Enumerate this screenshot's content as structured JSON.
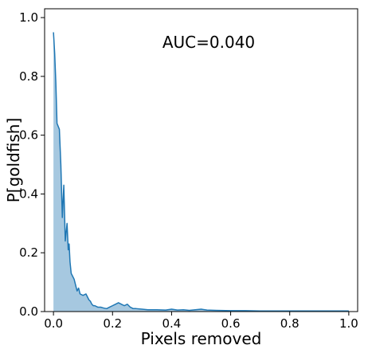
{
  "chart_data": {
    "type": "area",
    "title": "",
    "xlabel": "Pixels removed",
    "ylabel": "P[goldfish]",
    "annotation": "AUC=0.040",
    "xlim": [
      -0.03,
      1.03
    ],
    "ylim": [
      0.0,
      1.03
    ],
    "x_ticks": [
      0.0,
      0.2,
      0.4,
      0.6,
      0.8,
      1.0
    ],
    "x_tick_labels": [
      "0.0",
      "0.2",
      "0.4",
      "0.6",
      "0.8",
      "1.0"
    ],
    "y_ticks": [
      0.0,
      0.2,
      0.4,
      0.6,
      0.8,
      1.0
    ],
    "y_tick_labels": [
      "0.0",
      "0.2",
      "0.4",
      "0.6",
      "0.8",
      "1.0"
    ],
    "grid": false,
    "line_color": "#1f77b4",
    "fill_color": "#a6c8e0",
    "x": [
      0.0,
      0.004,
      0.008,
      0.012,
      0.016,
      0.02,
      0.025,
      0.03,
      0.035,
      0.04,
      0.043,
      0.046,
      0.05,
      0.053,
      0.056,
      0.06,
      0.065,
      0.07,
      0.075,
      0.08,
      0.085,
      0.09,
      0.1,
      0.11,
      0.12,
      0.125,
      0.13,
      0.135,
      0.14,
      0.15,
      0.16,
      0.17,
      0.18,
      0.19,
      0.2,
      0.21,
      0.22,
      0.23,
      0.24,
      0.25,
      0.26,
      0.27,
      0.28,
      0.3,
      0.32,
      0.35,
      0.38,
      0.4,
      0.42,
      0.44,
      0.46,
      0.48,
      0.5,
      0.52,
      0.55,
      0.6,
      0.65,
      0.7,
      0.75,
      0.8,
      0.85,
      0.9,
      0.95,
      1.0
    ],
    "y": [
      0.95,
      0.88,
      0.78,
      0.64,
      0.63,
      0.62,
      0.5,
      0.32,
      0.43,
      0.24,
      0.27,
      0.3,
      0.21,
      0.23,
      0.17,
      0.13,
      0.12,
      0.11,
      0.09,
      0.07,
      0.08,
      0.06,
      0.055,
      0.06,
      0.04,
      0.035,
      0.025,
      0.02,
      0.02,
      0.015,
      0.015,
      0.012,
      0.01,
      0.015,
      0.02,
      0.025,
      0.03,
      0.025,
      0.02,
      0.025,
      0.015,
      0.01,
      0.01,
      0.008,
      0.006,
      0.006,
      0.005,
      0.008,
      0.005,
      0.006,
      0.004,
      0.006,
      0.008,
      0.005,
      0.004,
      0.003,
      0.003,
      0.002,
      0.002,
      0.002,
      0.002,
      0.002,
      0.002,
      0.002
    ]
  }
}
